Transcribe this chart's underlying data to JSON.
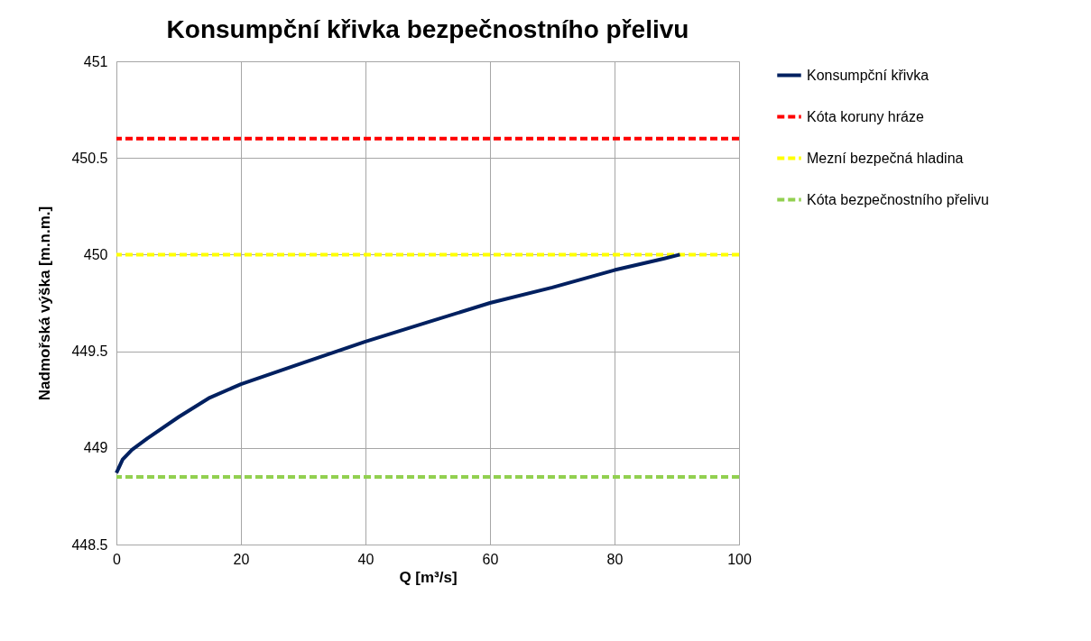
{
  "chart_data": {
    "type": "line",
    "title": "Konsumpční křivka bezpečnostního přelivu",
    "xlabel": "Q [m³/s]",
    "ylabel": "Nadmořská výška [m.n.m.]",
    "x": [
      0,
      1,
      2.5,
      5,
      10,
      15,
      20,
      30,
      40,
      50,
      60,
      70,
      80,
      88,
      90.5
    ],
    "series": [
      {
        "name": "Konsumpční křivka",
        "color": "#002060",
        "values": [
          448.87,
          448.94,
          448.99,
          449.05,
          449.16,
          449.26,
          449.33,
          449.44,
          449.55,
          449.65,
          449.75,
          449.83,
          449.92,
          449.98,
          450.0
        ]
      }
    ],
    "ref_lines": [
      {
        "axis": "y",
        "value": 450.6,
        "label": "Kóta koruny hráze",
        "color": "#ff0000",
        "line_style": "dashed"
      },
      {
        "axis": "y",
        "value": 450.0,
        "label": "Mezní bezpečná hladina",
        "color": "#ffff00",
        "line_style": "dashed"
      },
      {
        "axis": "y",
        "value": 448.85,
        "label": "Kóta bezpečnostního přelivu",
        "color": "#92d050",
        "line_style": "dashed"
      }
    ],
    "xlim": [
      0,
      100
    ],
    "xticks": [
      0,
      20,
      40,
      60,
      80,
      100
    ],
    "ylim": [
      448.5,
      451
    ],
    "yticks": [
      448.5,
      449,
      449.5,
      450,
      450.5,
      451
    ],
    "grid": true,
    "legend": "right",
    "marker": "none",
    "line_style": "solid"
  }
}
